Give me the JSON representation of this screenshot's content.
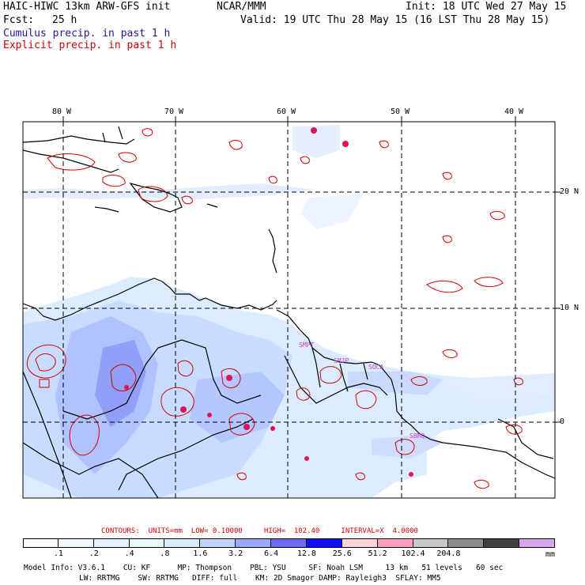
{
  "header": {
    "title_left": "HAIC-HIWC 13km ARW-GFS init",
    "title_center": "NCAR/MMM",
    "init": "Init: 18 UTC Wed 27 May 15",
    "fcst_label": "Fcst:",
    "fcst_value": "25 h",
    "valid": "Valid: 19 UTC Thu 28 May 15 (16 LST Thu 28 May 15)",
    "legend_cumulus": "Cumulus precip. in past 1 h",
    "legend_explicit": "Explicit precip. in past 1 h",
    "colors": {
      "cumulus": "#1a1aa0",
      "explicit": "#d40000"
    }
  },
  "map": {
    "lon_labels": [
      "80 W",
      "70 W",
      "60 W",
      "50 W",
      "40 W"
    ],
    "lat_labels": [
      "20 N",
      "10 N",
      "0"
    ],
    "station_labels": [
      "SMPT",
      "SMJP",
      "SOCA",
      "SBMQ"
    ],
    "station_color": "#cc44cc"
  },
  "contours": {
    "text": "CONTOURS:  UNITS=mm  LOW= 0.10000     HIGH=  102.40     INTERVAL=X  4.0000",
    "color": "#d40000"
  },
  "colorbar": {
    "ticks": [
      ".1",
      ".2",
      ".4",
      ".8",
      "1.6",
      "3.2",
      "6.4",
      "12.8",
      "25.6",
      "51.2",
      "102.4",
      "204.8"
    ],
    "unit": "mm",
    "colors": [
      "#ffffff",
      "#f2f8ff",
      "#e4f2ff",
      "#e6fbff",
      "#d8ecff",
      "#bfd4ff",
      "#9aa8ff",
      "#6c6cf2",
      "#1010f0",
      "#ffd4d4",
      "#ff9ebc",
      "#c8c8c8",
      "#8c8c8c",
      "#404040",
      "#d8a6f0"
    ]
  },
  "model_info": {
    "line1": "Model Info: V3.6.1    CU: KF      MP: Thompson    PBL: YSU     SF: Noah LSM     13 km   51 levels   60 sec",
    "line2": "LW: RRTMG    SW: RRTMG   DIFF: full    KM: 2D Smagor DAMP: Rayleigh3  SFLAY: MM5"
  }
}
